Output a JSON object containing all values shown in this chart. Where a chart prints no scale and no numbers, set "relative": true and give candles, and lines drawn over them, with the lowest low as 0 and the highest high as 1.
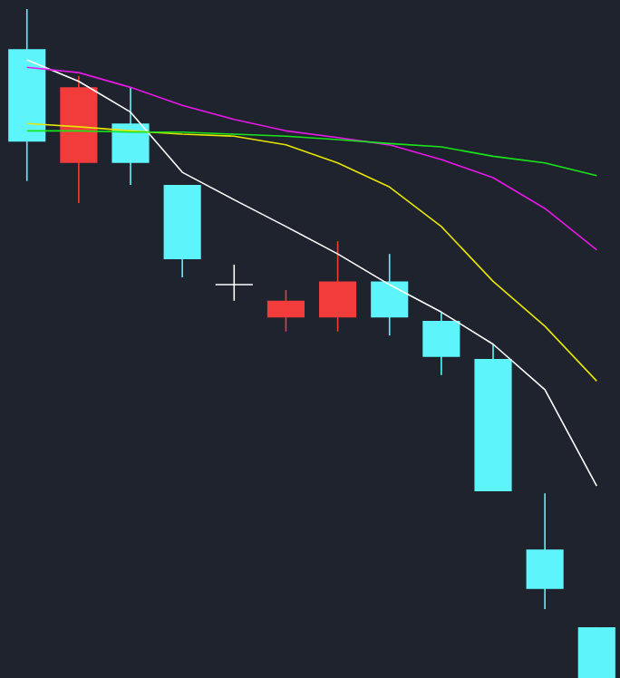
{
  "chart_data": {
    "type": "candlestick",
    "relative": true,
    "categories": [
      null,
      null,
      null,
      null,
      null,
      null,
      null,
      null,
      null,
      null,
      null,
      null
    ],
    "ohlc": [
      [
        0.94,
        1.0,
        0.743,
        0.802
      ],
      [
        0.77,
        0.9,
        0.71,
        0.883
      ],
      [
        0.829,
        0.883,
        0.737,
        0.77
      ],
      [
        0.737,
        0.737,
        0.599,
        0.626
      ],
      [
        0.588,
        0.618,
        0.564,
        0.588
      ],
      [
        0.539,
        0.58,
        0.518,
        0.564
      ],
      [
        0.539,
        0.653,
        0.518,
        0.593
      ],
      [
        0.593,
        0.634,
        0.512,
        0.539
      ],
      [
        0.534,
        0.547,
        0.453,
        0.48
      ],
      [
        0.477,
        0.499,
        0.279,
        0.279
      ],
      [
        0.192,
        0.276,
        0.103,
        0.133
      ],
      [
        0.076,
        0.076,
        0.0,
        0.0
      ]
    ],
    "colors": [
      "#5ef4fb",
      "#f23b3b",
      "#5ef4fb",
      "#5ef4fb",
      "#ffffff",
      "#f23b3b",
      "#f23b3b",
      "#5ef4fb",
      "#5ef4fb",
      "#5ef4fb",
      "#5ef4fb",
      "#5ef4fb"
    ],
    "series": [
      {
        "type": "line",
        "color": "#ffffff",
        "values": [
          0.924,
          0.892,
          0.846,
          0.756,
          0.715,
          0.675,
          0.634,
          0.588,
          0.547,
          0.499,
          0.431,
          0.287
        ]
      },
      {
        "type": "line",
        "color": "#e6e600",
        "values": [
          0.829,
          0.824,
          0.818,
          0.813,
          0.81,
          0.797,
          0.77,
          0.734,
          0.675,
          0.593,
          0.526,
          0.444
        ]
      },
      {
        "type": "line",
        "color": "#e619e6",
        "values": [
          0.913,
          0.905,
          0.883,
          0.856,
          0.835,
          0.818,
          0.808,
          0.797,
          0.775,
          0.748,
          0.702,
          0.64
        ]
      },
      {
        "type": "line",
        "color": "#19e619",
        "values": [
          0.818,
          0.818,
          0.816,
          0.816,
          0.813,
          0.81,
          0.805,
          0.799,
          0.794,
          0.78,
          0.77,
          0.751
        ]
      }
    ]
  }
}
